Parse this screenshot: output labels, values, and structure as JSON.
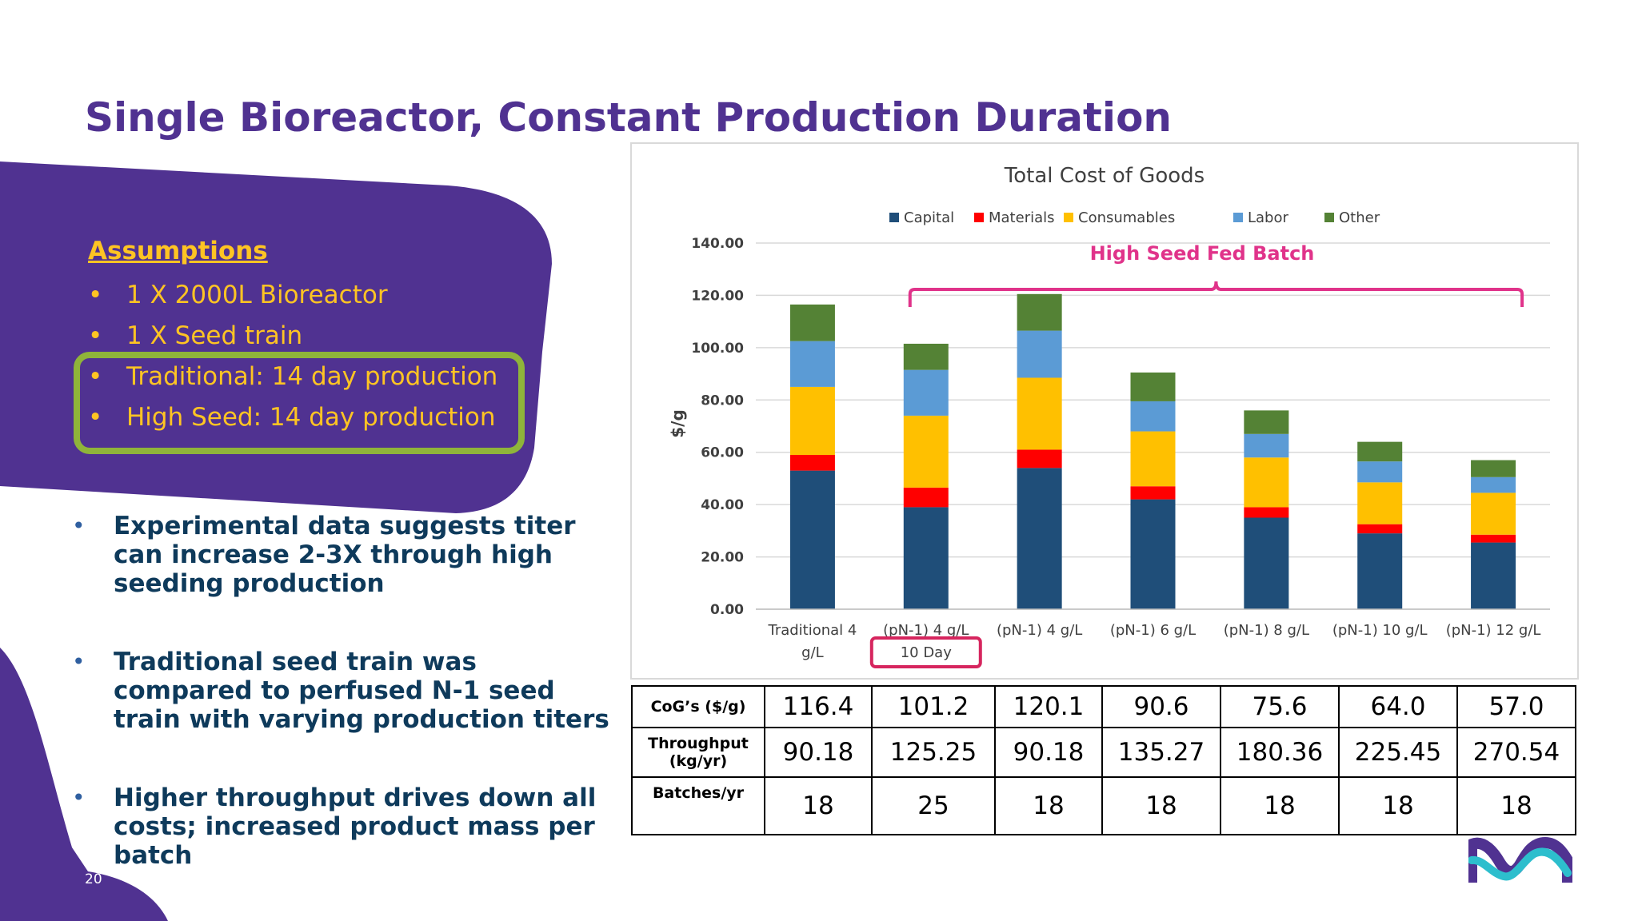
{
  "title": "Single Bioreactor, Constant Production Duration",
  "assumptions": {
    "heading": "Assumptions",
    "items": [
      "1 X 2000L Bioreactor",
      "1 X Seed train",
      "Traditional: 14 day production",
      "High Seed: 14 day production"
    ]
  },
  "bullets": [
    "Experimental data suggests titer can increase 2-3X through high seeding production",
    "Traditional seed train was compared to perfused N-1 seed train with varying production titers",
    "Higher throughput drives down all costs; increased product mass per batch"
  ],
  "bullet_glyph": "•",
  "page_number": "20",
  "chart_data": {
    "type": "bar",
    "stacked": true,
    "title": "Total Cost of Goods",
    "ylabel": "$/g",
    "xlabel": "",
    "ylim": [
      0,
      140
    ],
    "yticks": [
      "0.00",
      "20.00",
      "40.00",
      "60.00",
      "80.00",
      "100.00",
      "120.00",
      "140.00"
    ],
    "grid": true,
    "legend_position": "top",
    "categories": [
      [
        "Traditional 4",
        "g/L"
      ],
      [
        "(pN-1) 4 g/L",
        "10 Day"
      ],
      [
        "(pN-1) 4 g/L"
      ],
      [
        "(pN-1) 6 g/L"
      ],
      [
        "(pN-1) 8 g/L"
      ],
      [
        "(pN-1) 10 g/L"
      ],
      [
        "(pN-1) 12 g/L"
      ]
    ],
    "series": [
      {
        "name": "Capital",
        "color": "#1f4e79",
        "values": [
          53,
          39,
          54,
          42,
          35,
          29,
          25.5
        ]
      },
      {
        "name": "Materials",
        "color": "#ff0000",
        "values": [
          6,
          7.5,
          7,
          5,
          4,
          3.5,
          3
        ]
      },
      {
        "name": "Consumables",
        "color": "#ffc000",
        "values": [
          26,
          27.5,
          27.5,
          21,
          19,
          16,
          16
        ]
      },
      {
        "name": "Labor",
        "color": "#5b9bd5",
        "values": [
          17.5,
          17.5,
          18,
          11.5,
          9,
          8,
          6
        ]
      },
      {
        "name": "Other",
        "color": "#548235",
        "values": [
          14,
          10,
          14,
          11,
          9,
          7.5,
          6.5
        ]
      }
    ],
    "annotations": {
      "bracket_label": "High Seed Fed Batch",
      "bracket_color": "#e0338a",
      "highlight_box_color": "#d6255e"
    }
  },
  "table": {
    "rows": [
      {
        "label": [
          "CoG’s ($/g)"
        ],
        "values": [
          "116.4",
          "101.2",
          "120.1",
          "90.6",
          "75.6",
          "64.0",
          "57.0"
        ]
      },
      {
        "label": [
          "Throughput",
          "(kg/yr)"
        ],
        "values": [
          "90.18",
          "125.25",
          "90.18",
          "135.27",
          "180.36",
          "225.45",
          "270.54"
        ]
      },
      {
        "label": [
          "Batches/yr"
        ],
        "values": [
          "18",
          "25",
          "18",
          "18",
          "18",
          "18",
          "18"
        ]
      }
    ]
  },
  "colors": {
    "title": "#503291",
    "accent_purple": "#503291",
    "assumption_text": "#ffc423",
    "highlight_green": "#8fb43a",
    "body_text": "#0e3a5b",
    "logo_purple": "#503291",
    "logo_teal": "#2dbecd"
  }
}
